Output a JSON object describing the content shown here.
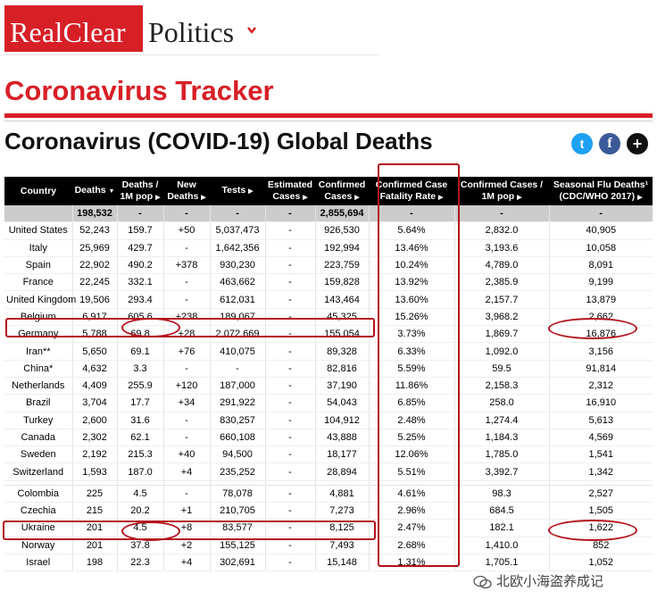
{
  "logo": {
    "part1": "RealClear",
    "part2": "Politics"
  },
  "tracker_title": "Coronavirus Tracker",
  "page_title": "Coronavirus (COVID-19) Global Deaths",
  "share": {
    "twitter": "t",
    "facebook": "f",
    "plus": "+"
  },
  "table": {
    "headers": [
      {
        "l1": "Country",
        "l2": "",
        "arrow": ""
      },
      {
        "l1": "Deaths",
        "l2": "",
        "arrow": "▼"
      },
      {
        "l1": "Deaths /",
        "l2": "1M pop",
        "arrow": "▶"
      },
      {
        "l1": "New",
        "l2": "Deaths",
        "arrow": "▶"
      },
      {
        "l1": "Tests",
        "l2": "",
        "arrow": "▶"
      },
      {
        "l1": "Estimated",
        "l2": "Cases",
        "arrow": "▶"
      },
      {
        "l1": "Confirmed",
        "l2": "Cases",
        "arrow": "▶"
      },
      {
        "l1": "Confirmed Case",
        "l2": "Fatality Rate",
        "arrow": "▶"
      },
      {
        "l1": "Confirmed Cases /",
        "l2": "1M pop",
        "arrow": "▶"
      },
      {
        "l1": "Seasonal Flu Deaths¹",
        "l2": "(CDC/WHO 2017)",
        "arrow": "▶"
      }
    ],
    "total": [
      "",
      "198,532",
      "-",
      "-",
      "-",
      "-",
      "2,855,694",
      "-",
      "-",
      "-"
    ],
    "rows_a": [
      [
        "United States",
        "52,243",
        "159.7",
        "+50",
        "5,037,473",
        "-",
        "926,530",
        "5.64%",
        "2,832.0",
        "40,905"
      ],
      [
        "Italy",
        "25,969",
        "429.7",
        "-",
        "1,642,356",
        "-",
        "192,994",
        "13.46%",
        "3,193.6",
        "10,058"
      ],
      [
        "Spain",
        "22,902",
        "490.2",
        "+378",
        "930,230",
        "-",
        "223,759",
        "10.24%",
        "4,789.0",
        "8,091"
      ],
      [
        "France",
        "22,245",
        "332.1",
        "-",
        "463,662",
        "-",
        "159,828",
        "13.92%",
        "2,385.9",
        "9,199"
      ],
      [
        "United Kingdom",
        "19,506",
        "293.4",
        "-",
        "612,031",
        "-",
        "143,464",
        "13.60%",
        "2,157.7",
        "13,879"
      ],
      [
        "Belgium",
        "6,917",
        "605.6",
        "+238",
        "189,067",
        "-",
        "45,325",
        "15.26%",
        "3,968.2",
        "2,662"
      ],
      [
        "Germany",
        "5,788",
        "69.8",
        "+28",
        "2,072,669",
        "-",
        "155,054",
        "3.73%",
        "1,869.7",
        "16,876"
      ],
      [
        "Iran**",
        "5,650",
        "69.1",
        "+76",
        "410,075",
        "-",
        "89,328",
        "6.33%",
        "1,092.0",
        "3,156"
      ],
      [
        "China*",
        "4,632",
        "3.3",
        "-",
        "-",
        "-",
        "82,816",
        "5.59%",
        "59.5",
        "91,814"
      ],
      [
        "Netherlands",
        "4,409",
        "255.9",
        "+120",
        "187,000",
        "-",
        "37,190",
        "11.86%",
        "2,158.3",
        "2,312"
      ],
      [
        "Brazil",
        "3,704",
        "17.7",
        "+34",
        "291,922",
        "-",
        "54,043",
        "6.85%",
        "258.0",
        "16,910"
      ],
      [
        "Turkey",
        "2,600",
        "31.6",
        "-",
        "830,257",
        "-",
        "104,912",
        "2.48%",
        "1,274.4",
        "5,613"
      ],
      [
        "Canada",
        "2,302",
        "62.1",
        "-",
        "660,108",
        "-",
        "43,888",
        "5.25%",
        "1,184.3",
        "4,569"
      ],
      [
        "Sweden",
        "2,192",
        "215.3",
        "+40",
        "94,500",
        "-",
        "18,177",
        "12.06%",
        "1,785.0",
        "1,541"
      ],
      [
        "Switzerland",
        "1,593",
        "187.0",
        "+4",
        "235,252",
        "-",
        "28,894",
        "5.51%",
        "3,392.7",
        "1,342"
      ]
    ],
    "rows_b": [
      [
        "Colombia",
        "225",
        "4.5",
        "-",
        "78,078",
        "-",
        "4,881",
        "4.61%",
        "98.3",
        "2,527"
      ],
      [
        "Czechia",
        "215",
        "20.2",
        "+1",
        "210,705",
        "-",
        "7,273",
        "2.96%",
        "684.5",
        "1,505"
      ],
      [
        "Ukraine",
        "201",
        "4.5",
        "+8",
        "83,577",
        "-",
        "8,125",
        "2.47%",
        "182.1",
        "1,622"
      ],
      [
        "Norway",
        "201",
        "37.8",
        "+2",
        "155,125",
        "-",
        "7,493",
        "2.68%",
        "1,410.0",
        "852"
      ],
      [
        "Israel",
        "198",
        "22.3",
        "+4",
        "302,691",
        "-",
        "15,148",
        "1.31%",
        "1,705.1",
        "1,052"
      ]
    ]
  },
  "watermark": "北欧小海盗养成记"
}
